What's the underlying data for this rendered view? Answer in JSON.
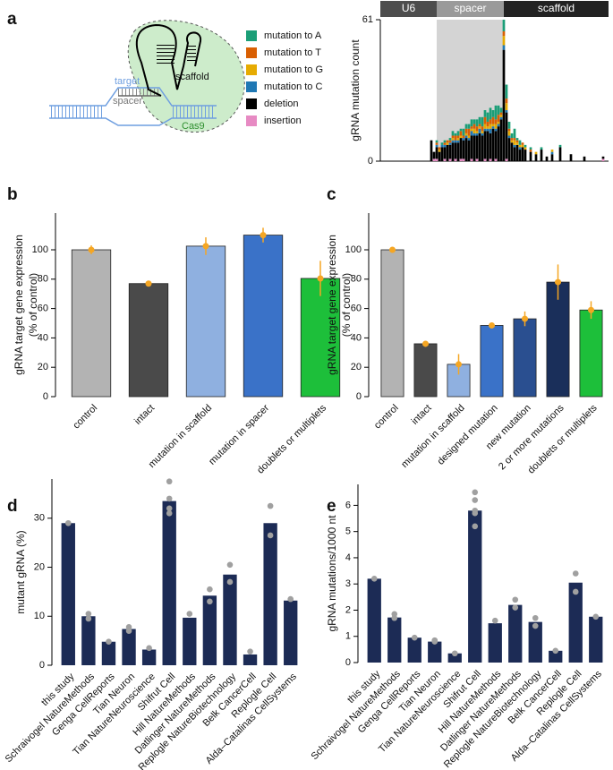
{
  "panel_labels": [
    "a",
    "b",
    "c",
    "d",
    "e"
  ],
  "diagram": {
    "labels": {
      "scaffold": "scaffold",
      "target": "target",
      "spacer": "spacer",
      "cas9": "Cas9"
    }
  },
  "chart_data": [
    {
      "type": "stacked_bar",
      "ylabel": "gRNA mutation count",
      "ylim": [
        0,
        61
      ],
      "yticks": [
        0,
        61
      ],
      "xlim": [
        -21,
        64
      ],
      "regions": [
        {
          "label": "U6",
          "start": -21,
          "end": 0,
          "color": "#4d4d4d"
        },
        {
          "label": "spacer",
          "start": 0,
          "end": 25,
          "color": "#9a9a9a",
          "shade": "#d4d4d4"
        },
        {
          "label": "scaffold",
          "start": 25,
          "end": 64,
          "color": "#222222"
        }
      ],
      "x": [
        -2,
        -1,
        0,
        1,
        2,
        3,
        4,
        5,
        6,
        7,
        8,
        9,
        10,
        11,
        12,
        13,
        14,
        15,
        16,
        17,
        18,
        19,
        20,
        21,
        22,
        23,
        24,
        25,
        26,
        27,
        28,
        29,
        30,
        31,
        32,
        33,
        35,
        37,
        39,
        41,
        43,
        46,
        50,
        55,
        62
      ],
      "series": [
        {
          "name": "mutation to A",
          "color": "#1b9e77",
          "values": [
            0,
            0,
            1,
            0,
            1,
            1,
            0,
            1,
            2,
            1,
            2,
            1,
            3,
            2,
            2,
            3,
            2,
            3,
            3,
            4,
            3,
            4,
            5,
            3,
            6,
            4,
            2,
            5,
            6,
            3,
            2,
            4,
            1,
            2,
            0,
            1,
            1,
            0,
            1,
            0,
            0,
            1,
            0,
            0,
            0
          ]
        },
        {
          "name": "mutation to T",
          "color": "#d95f02",
          "values": [
            0,
            0,
            1,
            1,
            0,
            1,
            1,
            1,
            1,
            2,
            1,
            2,
            1,
            2,
            3,
            1,
            2,
            2,
            1,
            2,
            3,
            2,
            2,
            3,
            2,
            3,
            1,
            2,
            2,
            1,
            1,
            1,
            1,
            0,
            1,
            0,
            1,
            0,
            0,
            0,
            0,
            0,
            0,
            0,
            0
          ]
        },
        {
          "name": "mutation to G",
          "color": "#e6ab02",
          "values": [
            0,
            0,
            0,
            1,
            0,
            0,
            1,
            0,
            1,
            0,
            1,
            1,
            0,
            1,
            1,
            1,
            2,
            1,
            1,
            1,
            2,
            1,
            2,
            1,
            2,
            1,
            1,
            4,
            3,
            2,
            1,
            2,
            1,
            1,
            1,
            1,
            0,
            1,
            0,
            0,
            1,
            0,
            0,
            0,
            0
          ]
        },
        {
          "name": "mutation to C",
          "color": "#1f78b4",
          "values": [
            0,
            0,
            1,
            0,
            1,
            1,
            0,
            1,
            1,
            1,
            1,
            0,
            1,
            1,
            1,
            2,
            1,
            1,
            2,
            1,
            1,
            1,
            2,
            1,
            1,
            1,
            1,
            2,
            1,
            1,
            0,
            1,
            0,
            1,
            0,
            0,
            0,
            0,
            0,
            0,
            1,
            0,
            0,
            0,
            0
          ]
        },
        {
          "name": "deletion",
          "color": "#000000",
          "values": [
            9,
            3,
            5,
            4,
            6,
            5,
            7,
            6,
            8,
            7,
            8,
            9,
            8,
            10,
            9,
            10,
            11,
            10,
            12,
            11,
            12,
            13,
            11,
            14,
            12,
            15,
            18,
            48,
            20,
            10,
            8,
            6,
            7,
            5,
            6,
            5,
            4,
            3,
            5,
            2,
            3,
            6,
            3,
            2,
            1
          ]
        },
        {
          "name": "insertion",
          "color": "#e78ac3",
          "values": [
            0,
            1,
            1,
            0,
            0,
            1,
            0,
            1,
            0,
            1,
            0,
            1,
            1,
            0,
            0,
            1,
            0,
            1,
            0,
            0,
            1,
            0,
            1,
            0,
            1,
            0,
            0,
            0,
            1,
            0,
            0,
            0,
            0,
            0,
            0,
            0,
            0,
            0,
            0,
            0,
            0,
            0,
            0,
            0,
            1
          ]
        }
      ]
    },
    {
      "type": "bar",
      "ylabel": [
        "gRNA target gene expression",
        "(% of control)"
      ],
      "categories": [
        "control",
        "intact",
        "mutation in scaffold",
        "mutation in spacer",
        "doublets or multiplets"
      ],
      "values": [
        100,
        77,
        102.5,
        110,
        80.5
      ],
      "errors": [
        3,
        2,
        6,
        5,
        12
      ],
      "colors": [
        "#b3b3b3",
        "#4a4a4a",
        "#8fb0e0",
        "#3a72c8",
        "#1dbf3a"
      ],
      "error_color": "#f5a623",
      "ylim": [
        0,
        125
      ],
      "yticks": [
        0,
        20,
        40,
        60,
        80,
        100
      ]
    },
    {
      "type": "bar",
      "ylabel": [
        "gRNA target gene expression",
        "(% of control)"
      ],
      "categories": [
        "control",
        "intact",
        "mutation in scaffold",
        "designed mutation",
        "new mutation",
        "2 or more mutations",
        "doublets or multiplets"
      ],
      "values": [
        100,
        36,
        22,
        48.5,
        53,
        78,
        59
      ],
      "errors": [
        0.5,
        1,
        7,
        1,
        5,
        12,
        6
      ],
      "colors": [
        "#b3b3b3",
        "#4a4a4a",
        "#8fb0e0",
        "#3a72c8",
        "#2a4f90",
        "#1a2f5a",
        "#1dbf3a"
      ],
      "error_color": "#f5a623",
      "ylim": [
        0,
        125
      ],
      "yticks": [
        0,
        20,
        40,
        60,
        80,
        100
      ]
    },
    {
      "type": "bar",
      "ylabel": "mutant gRNA (%)",
      "categories": [
        "this study",
        "Schraivogel NatureMethods",
        "Genga CellReports",
        "Tian Neuron",
        "Tian NatureNeuroscience",
        "Shifrut Cell",
        "Hill NatureMethods",
        "Datlinger NatureMethods",
        "Replogle NatureBiotechnology",
        "Belk CancerCell",
        "Replogle Cell",
        "Alda–Catalinas CellSystems"
      ],
      "values": [
        29,
        10,
        4.8,
        7.4,
        3.2,
        33.5,
        9.7,
        14.2,
        18.5,
        2.2,
        29,
        13.2
      ],
      "color": "#1c2b55",
      "replicates": [
        [
          29
        ],
        [
          9.5,
          10.5
        ],
        [
          4.8
        ],
        [
          7,
          7.8
        ],
        [
          3.5
        ],
        [
          31,
          32,
          34,
          37.5
        ],
        [
          10.5
        ],
        [
          13,
          15.5
        ],
        [
          17,
          20.5
        ],
        [
          2.8
        ],
        [
          26.5,
          32.5
        ],
        [
          13.5
        ]
      ],
      "point_color": "#a0a0a0",
      "ylim": [
        0,
        38
      ],
      "yticks": [
        0,
        10,
        20,
        30
      ]
    },
    {
      "type": "bar",
      "ylabel": "gRNA mutations/1000 nt",
      "categories": [
        "this study",
        "Schraivogel NatureMethods",
        "Genga CellReports",
        "Tian Neuron",
        "Tian NatureNeuroscience",
        "Shifrut Cell",
        "Hill NatureMethods",
        "Datlinger NatureMethods",
        "Replogle NatureBiotechnology",
        "Belk CancerCell",
        "Replogle Cell",
        "Alda–Catalinas CellSystems"
      ],
      "values": [
        3.2,
        1.72,
        0.95,
        0.8,
        0.35,
        5.8,
        1.5,
        2.2,
        1.55,
        0.45,
        3.05,
        1.75
      ],
      "color": "#1c2b55",
      "replicates": [
        [
          3.2
        ],
        [
          1.7,
          1.85
        ],
        [
          0.95
        ],
        [
          0.8,
          0.85
        ],
        [
          0.35
        ],
        [
          5.2,
          5.7,
          5.8,
          6.2,
          6.5
        ],
        [
          1.6
        ],
        [
          2.1,
          2.4
        ],
        [
          1.4,
          1.7
        ],
        [
          0.45
        ],
        [
          2.7,
          3.4
        ],
        [
          1.75
        ]
      ],
      "point_color": "#a0a0a0",
      "ylim": [
        0,
        6.8
      ],
      "yticks": [
        0,
        1,
        2,
        3,
        4,
        5,
        6
      ]
    }
  ]
}
